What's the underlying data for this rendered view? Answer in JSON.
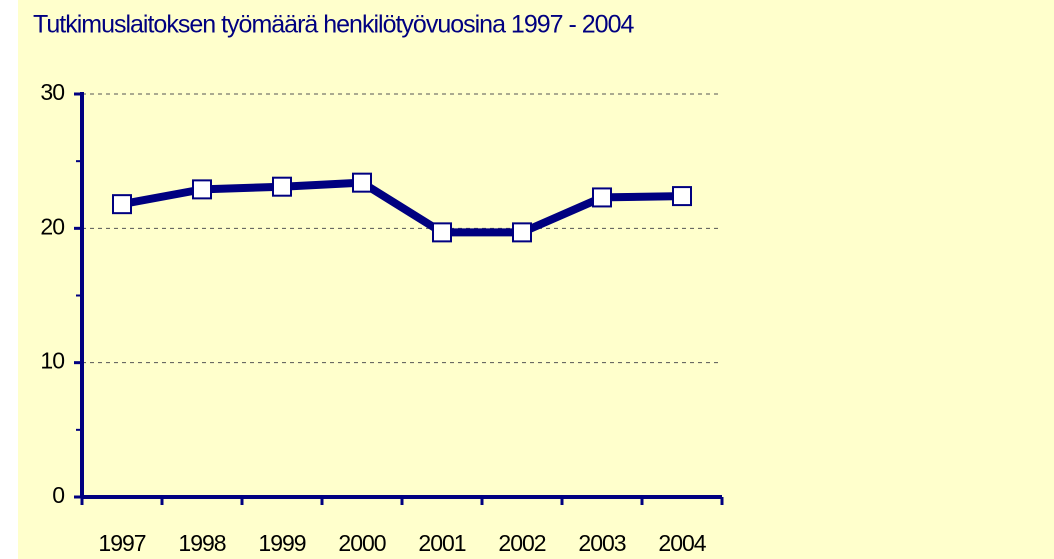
{
  "chart_data": {
    "type": "line",
    "title": "Tutkimuslaitoksen työmäärä henkilötyövuosina 1997 - 2004",
    "categories": [
      "1997",
      "1998",
      "1999",
      "2000",
      "2001",
      "2002",
      "2003",
      "2004"
    ],
    "values": [
      21.8,
      22.9,
      23.1,
      23.4,
      19.7,
      19.7,
      22.3,
      22.4
    ],
    "color": "#000080",
    "ylim": [
      0,
      30
    ],
    "yticks": [
      0,
      10,
      20,
      30
    ],
    "grid": true
  }
}
